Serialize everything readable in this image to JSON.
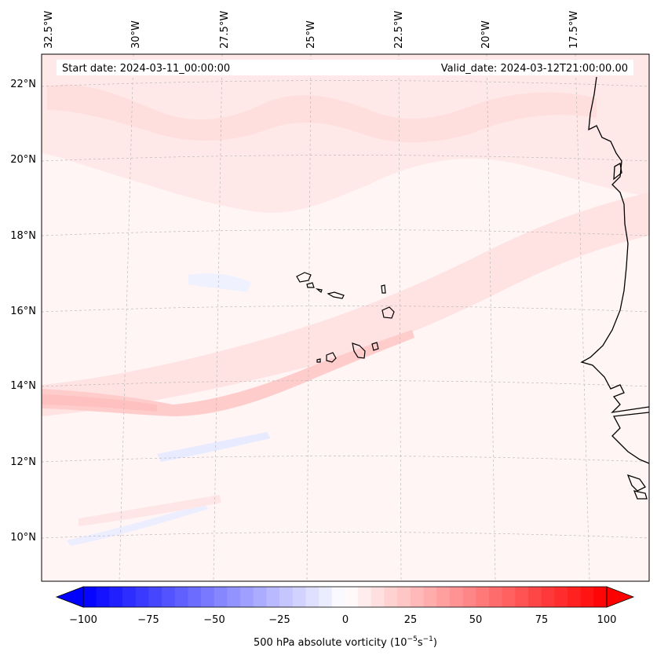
{
  "map": {
    "start_date": "Start date: 2024-03-11_00:00:00",
    "valid_date": "Valid_date: 2024-03-12T21:00:00.00",
    "lon_labels": [
      "32.5°W",
      "30°W",
      "27.5°W",
      "25°W",
      "22.5°W",
      "20°W",
      "17.5°W"
    ],
    "lat_labels": [
      "22°N",
      "20°N",
      "18°N",
      "16°N",
      "14°N",
      "12°N",
      "10°N"
    ],
    "extent": {
      "lon_min": -32.5,
      "lon_max": -15.5,
      "lat_min": 8.8,
      "lat_max": 22.8
    },
    "colors": {
      "neg_max": "#0000ff",
      "pos_max": "#ff0000",
      "zero": "#ffffff",
      "coast": "#000000",
      "grid": "#bbbbbb",
      "field_light_pos": "#fff3f3",
      "field_pos": "#ffdede",
      "field_pos_strong": "#ffc8c8",
      "field_neg": "#eef0ff",
      "field_neg_strong": "#dfe3ff"
    }
  },
  "colorbar": {
    "label_prefix": "500 hPa absolute vorticity (10",
    "label_exp1": "−5",
    "label_mid": "s",
    "label_exp2": "−1",
    "label_suffix": ")",
    "ticks": [
      "−100",
      "−75",
      "−50",
      "−25",
      "0",
      "25",
      "50",
      "75",
      "100"
    ],
    "min": -100,
    "max": 100,
    "levels": 41
  }
}
